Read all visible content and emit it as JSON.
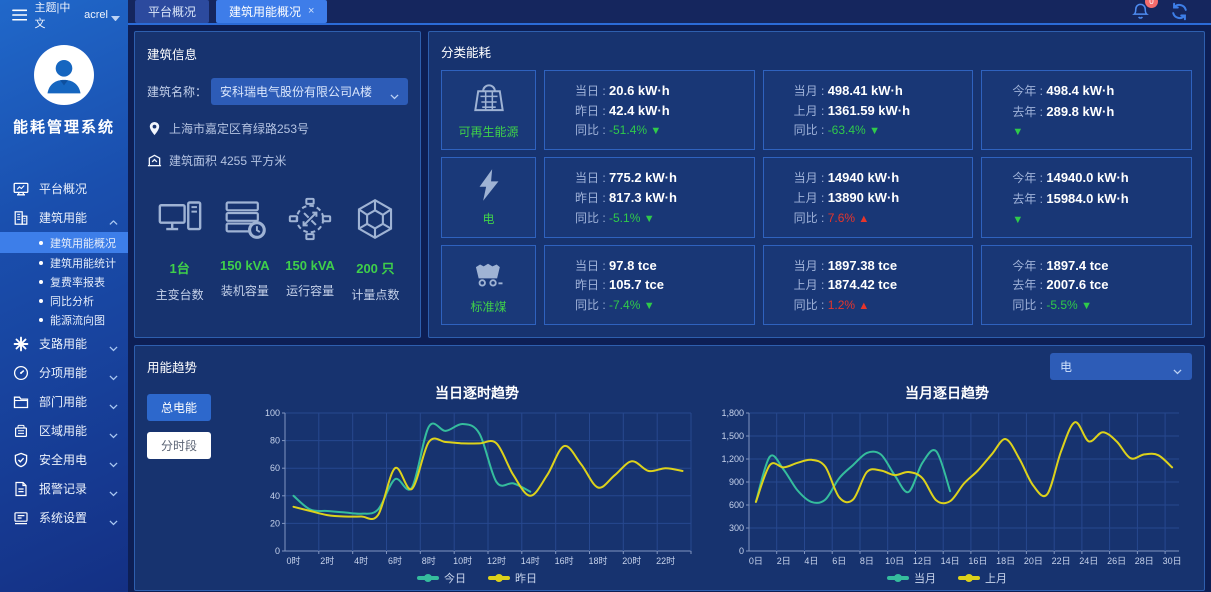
{
  "topbar": {
    "theme_label": "主题|中文",
    "username": "acrel",
    "tabs": [
      {
        "label": "平台概况",
        "active": false,
        "closable": false
      },
      {
        "label": "建筑用能概况",
        "active": true,
        "closable": true
      }
    ],
    "notification_badge": "0"
  },
  "sidebar": {
    "app_title": "能耗管理系统",
    "menu": [
      {
        "label": "平台概况",
        "icon": "platform-overview-icon"
      },
      {
        "label": "建筑用能",
        "icon": "building-energy-icon",
        "expanded": true,
        "children": [
          {
            "label": "建筑用能概况",
            "active": true
          },
          {
            "label": "建筑用能统计",
            "active": false
          },
          {
            "label": "复费率报表",
            "active": false
          },
          {
            "label": "同比分析",
            "active": false
          },
          {
            "label": "能源流向图",
            "active": false
          }
        ]
      },
      {
        "label": "支路用能",
        "icon": "branch-energy-icon",
        "expanded": false
      },
      {
        "label": "分项用能",
        "icon": "subitem-energy-icon",
        "expanded": false
      },
      {
        "label": "部门用能",
        "icon": "department-energy-icon",
        "expanded": false
      },
      {
        "label": "区域用能",
        "icon": "area-energy-icon",
        "expanded": false
      },
      {
        "label": "安全用电",
        "icon": "safety-power-icon",
        "expanded": false
      },
      {
        "label": "报警记录",
        "icon": "alarm-record-icon",
        "expanded": false
      },
      {
        "label": "系统设置",
        "icon": "system-settings-icon",
        "expanded": false
      }
    ]
  },
  "building": {
    "panel_title": "建筑信息",
    "name_label": "建筑名称：",
    "name_value": "安科瑞电气股份有限公司A楼",
    "address": "上海市嘉定区育绿路253号",
    "area": "建筑面积 4255 平方米",
    "stats": [
      {
        "value": "1台",
        "label": "主变台数",
        "icon": "transformer-count-icon"
      },
      {
        "value": "150 kVA",
        "label": "装机容量",
        "icon": "installed-capacity-icon"
      },
      {
        "value": "150 kVA",
        "label": "运行容量",
        "icon": "running-capacity-icon"
      },
      {
        "value": "200 只",
        "label": "计量点数",
        "icon": "metering-points-icon"
      }
    ]
  },
  "energy": {
    "panel_title": "分类能耗",
    "rows": [
      {
        "category": "可再生能源",
        "icon": "renewable-energy-icon",
        "cards": [
          {
            "rows": [
              [
                "当日",
                "20.6 kW·h"
              ],
              [
                "昨日",
                "42.4 kW·h"
              ]
            ],
            "compare": {
              "label": "同比",
              "value": "-51.4%",
              "dir": "down"
            }
          },
          {
            "rows": [
              [
                "当月",
                "498.41 kW·h"
              ],
              [
                "上月",
                "1361.59 kW·h"
              ]
            ],
            "compare": {
              "label": "同比",
              "value": "-63.4%",
              "dir": "down"
            }
          },
          {
            "rows": [
              [
                "今年",
                "498.4 kW·h"
              ],
              [
                "去年",
                "289.8 kW·h"
              ]
            ],
            "compare": {
              "label": "",
              "value": "",
              "dir": "down"
            }
          }
        ]
      },
      {
        "category": "电",
        "icon": "electricity-icon",
        "cards": [
          {
            "rows": [
              [
                "当日",
                "775.2 kW·h"
              ],
              [
                "昨日",
                "817.3 kW·h"
              ]
            ],
            "compare": {
              "label": "同比",
              "value": "-5.1%",
              "dir": "down"
            }
          },
          {
            "rows": [
              [
                "当月",
                "14940 kW·h"
              ],
              [
                "上月",
                "13890 kW·h"
              ]
            ],
            "compare": {
              "label": "同比",
              "value": "7.6%",
              "dir": "up"
            }
          },
          {
            "rows": [
              [
                "今年",
                "14940.0 kW·h"
              ],
              [
                "去年",
                "15984.0 kW·h"
              ]
            ],
            "compare": {
              "label": "",
              "value": "",
              "dir": "down"
            }
          }
        ]
      },
      {
        "category": "标准煤",
        "icon": "standard-coal-icon",
        "cards": [
          {
            "rows": [
              [
                "当日",
                "97.8 tce"
              ],
              [
                "昨日",
                "105.7 tce"
              ]
            ],
            "compare": {
              "label": "同比",
              "value": "-7.4%",
              "dir": "down"
            }
          },
          {
            "rows": [
              [
                "当月",
                "1897.38 tce"
              ],
              [
                "上月",
                "1874.42 tce"
              ]
            ],
            "compare": {
              "label": "同比",
              "value": "1.2%",
              "dir": "up"
            }
          },
          {
            "rows": [
              [
                "今年",
                "1897.4 tce"
              ],
              [
                "去年",
                "2007.6 tce"
              ]
            ],
            "compare": {
              "label": "同比",
              "value": "-5.5%",
              "dir": "down"
            }
          }
        ]
      }
    ]
  },
  "trend": {
    "panel_title": "用能趋势",
    "buttons": [
      {
        "label": "总电能",
        "active": true
      },
      {
        "label": "分时段",
        "active": false
      }
    ],
    "selector_value": "电"
  },
  "chart_data": [
    {
      "type": "line",
      "title": "当日逐时趋势",
      "x_tick_labels": [
        "0时",
        "2时",
        "4时",
        "6时",
        "8时",
        "10时",
        "12时",
        "14时",
        "16时",
        "18时",
        "20时",
        "22时"
      ],
      "bands": 24,
      "tick_every": 2,
      "ylim": [
        0,
        100
      ],
      "y_tick_labels": [
        "0",
        "20",
        "40",
        "60",
        "80",
        "100"
      ],
      "grid": true,
      "legend_position": "bottom",
      "series": [
        {
          "name": "今日",
          "color": "#35bd9d",
          "start": 0,
          "values": [
            40,
            30,
            29,
            28,
            27,
            30,
            52,
            46,
            90,
            87,
            92,
            85,
            50,
            49,
            43
          ]
        },
        {
          "name": "昨日",
          "color": "#ddd21b",
          "start": 0,
          "values": [
            32,
            29,
            26,
            25,
            25,
            26,
            60,
            45,
            79,
            79,
            78,
            78,
            78,
            55,
            40,
            55,
            76,
            63,
            46,
            55,
            65,
            58,
            60,
            58
          ]
        }
      ]
    },
    {
      "type": "line",
      "title": "当月逐日趋势",
      "x_tick_labels": [
        "0日",
        "2日",
        "4日",
        "6日",
        "8日",
        "10日",
        "12日",
        "14日",
        "16日",
        "18日",
        "20日",
        "22日",
        "24日",
        "26日",
        "28日",
        "30日"
      ],
      "bands": 31,
      "tick_every": 2,
      "ylim": [
        0,
        1800
      ],
      "y_tick_labels": [
        "0",
        "300",
        "600",
        "900",
        "1,200",
        "1,500",
        "1,800"
      ],
      "grid": true,
      "legend_position": "bottom",
      "series": [
        {
          "name": "当月",
          "color": "#35bd9d",
          "start": 0,
          "values": [
            640,
            1230,
            1060,
            790,
            640,
            670,
            950,
            1120,
            1280,
            1260,
            990,
            770,
            1150,
            1300,
            780
          ]
        },
        {
          "name": "上月",
          "color": "#ddd21b",
          "start": 0,
          "values": [
            640,
            1120,
            1090,
            1150,
            1190,
            1100,
            700,
            670,
            1030,
            1050,
            990,
            1030,
            950,
            660,
            650,
            880,
            1050,
            1260,
            1460,
            1200,
            850,
            740,
            1300,
            1680,
            1430,
            1550,
            1430,
            1210,
            1260,
            1250,
            1090
          ]
        }
      ]
    }
  ]
}
